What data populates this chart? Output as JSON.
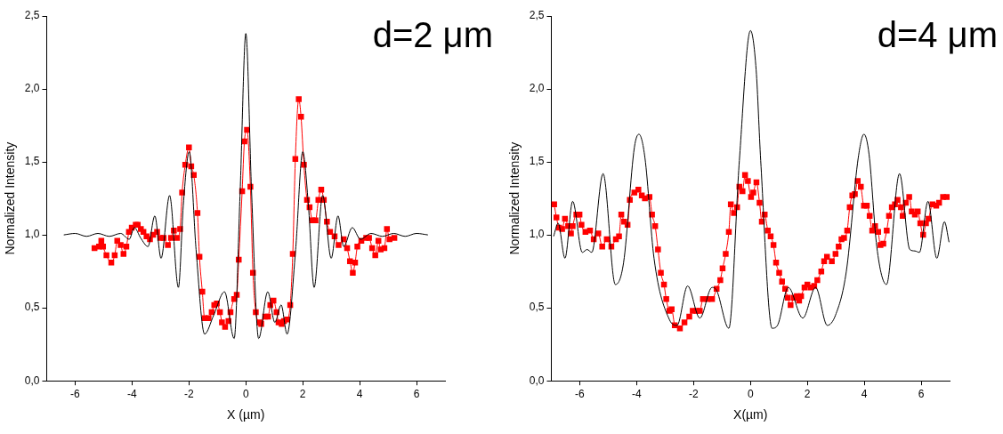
{
  "chart_data": [
    {
      "type": "line",
      "annotations": [
        "d=2 μm"
      ],
      "xlabel": "X (µm)",
      "ylabel": "Normalized Intensity",
      "xlim": [
        -7,
        7
      ],
      "xticks": [
        -6,
        -4,
        -2,
        0,
        2,
        4,
        6
      ],
      "ylim": [
        0,
        2.5
      ],
      "yticks": [
        {
          "value": 0,
          "label": "0,0"
        },
        {
          "value": 0.5,
          "label": "0,5"
        },
        {
          "value": 1,
          "label": "1,0"
        },
        {
          "value": 1.5,
          "label": "1,5"
        },
        {
          "value": 2,
          "label": "2,0"
        },
        {
          "value": 2.5,
          "label": "2,5"
        }
      ],
      "grid": false,
      "series": [
        {
          "type": "line",
          "marker": "none",
          "color": "#000000",
          "x": [
            -6.4,
            -6.0,
            -5.6,
            -5.2,
            -4.8,
            -4.4,
            -4.1,
            -3.92,
            -3.7,
            -3.44,
            -3.2,
            -2.98,
            -2.68,
            -2.37,
            -2.2,
            -1.99,
            -1.75,
            -1.45,
            -1.13,
            -0.75,
            -0.41,
            -0.2,
            0,
            0.2,
            0.45,
            0.77,
            1.02,
            1.24,
            1.45,
            1.75,
            2.0,
            2.2,
            2.4,
            2.7,
            3.0,
            3.24,
            3.44,
            3.74,
            4.03,
            4.4,
            4.8,
            5.2,
            5.6,
            6.0,
            6.4
          ],
          "values": [
            1.0,
            1.01,
            0.99,
            1.01,
            0.99,
            1.01,
            0.97,
            1.05,
            0.98,
            0.92,
            1.13,
            0.84,
            1.27,
            0.64,
            1.2,
            1.57,
            0.9,
            0.32,
            0.45,
            0.61,
            0.29,
            1.3,
            2.38,
            1.3,
            0.29,
            0.61,
            0.4,
            0.52,
            0.32,
            0.9,
            1.57,
            1.2,
            0.64,
            1.27,
            0.84,
            1.13,
            0.92,
            1.05,
            0.97,
            1.01,
            0.99,
            1.01,
            0.99,
            1.01,
            1.0
          ]
        },
        {
          "type": "line",
          "marker": "square",
          "color": "#ff0000",
          "x": [
            -5.32,
            -5.16,
            -5.08,
            -5.02,
            -4.9,
            -4.73,
            -4.61,
            -4.52,
            -4.4,
            -4.3,
            -4.2,
            -4.11,
            -4.01,
            -3.87,
            -3.8,
            -3.69,
            -3.6,
            -3.49,
            -3.37,
            -3.26,
            -3.12,
            -3.01,
            -2.89,
            -2.74,
            -2.63,
            -2.53,
            -2.42,
            -2.31,
            -2.24,
            -2.13,
            -2.0,
            -1.92,
            -1.83,
            -1.7,
            -1.63,
            -1.53,
            -1.45,
            -1.31,
            -1.2,
            -1.11,
            -1.02,
            -0.91,
            -0.84,
            -0.73,
            -0.61,
            -0.54,
            -0.41,
            -0.32,
            -0.25,
            -0.13,
            -0.05,
            0.04,
            0.16,
            0.25,
            0.35,
            0.48,
            0.54,
            0.68,
            0.78,
            0.86,
            0.97,
            1.08,
            1.15,
            1.26,
            1.34,
            1.45,
            1.56,
            1.65,
            1.74,
            1.86,
            1.94,
            2.04,
            2.15,
            2.24,
            2.34,
            2.45,
            2.55,
            2.65,
            2.74,
            2.85,
            2.96,
            3.12,
            3.26,
            3.44,
            3.56,
            3.66,
            3.76,
            3.84,
            3.92,
            4.06,
            4.23,
            4.33,
            4.44,
            4.55,
            4.66,
            4.74,
            4.87,
            4.96,
            5.05,
            5.22
          ],
          "values": [
            0.91,
            0.92,
            0.96,
            0.92,
            0.86,
            0.81,
            0.86,
            0.96,
            0.93,
            0.87,
            0.92,
            1.02,
            1.05,
            1.07,
            1.07,
            1.04,
            1.02,
            0.99,
            0.97,
            1.0,
            1.02,
            0.98,
            0.98,
            0.93,
            0.98,
            1.03,
            0.98,
            1.04,
            1.29,
            1.48,
            1.6,
            1.47,
            1.41,
            1.15,
            0.85,
            0.61,
            0.43,
            0.43,
            0.47,
            0.52,
            0.53,
            0.47,
            0.4,
            0.37,
            0.41,
            0.47,
            0.56,
            0.59,
            0.83,
            1.3,
            1.64,
            1.72,
            1.33,
            0.74,
            0.47,
            0.4,
            0.39,
            0.44,
            0.44,
            0.52,
            0.55,
            0.47,
            0.4,
            0.39,
            0.41,
            0.42,
            0.52,
            0.87,
            1.52,
            1.93,
            1.81,
            1.48,
            1.24,
            1.19,
            1.1,
            1.1,
            1.24,
            1.31,
            1.24,
            1.09,
            1.02,
            0.99,
            0.93,
            0.97,
            0.91,
            0.82,
            0.74,
            0.81,
            0.92,
            0.96,
            0.98,
            0.98,
            0.91,
            0.86,
            0.96,
            0.9,
            0.91,
            1.04,
            0.97,
            0.98
          ]
        }
      ]
    },
    {
      "type": "line",
      "annotations": [
        "d=4 μm"
      ],
      "xlabel": "X(µm)",
      "ylabel": "Normalized Intensity",
      "xlim": [
        -7,
        7
      ],
      "xticks": [
        -6,
        -4,
        -2,
        0,
        2,
        4,
        6
      ],
      "ylim": [
        0,
        2.5
      ],
      "yticks": [
        {
          "value": 0,
          "label": "0,0"
        },
        {
          "value": 0.5,
          "label": "0,5"
        },
        {
          "value": 1,
          "label": "1,0"
        },
        {
          "value": 1.5,
          "label": "1,5"
        },
        {
          "value": 2,
          "label": "2,0"
        },
        {
          "value": 2.5,
          "label": "2,5"
        }
      ],
      "grid": false,
      "series": [
        {
          "type": "line",
          "marker": "none",
          "color": "#000000",
          "x": [
            -6.92,
            -6.76,
            -6.52,
            -6.25,
            -5.91,
            -5.74,
            -5.58,
            -5.18,
            -4.75,
            -4.46,
            -4.08,
            -3.92,
            -3.71,
            -3.39,
            -2.85,
            -2.58,
            -2.21,
            -1.78,
            -1.35,
            -1.19,
            -0.76,
            -0.39,
            0,
            0.2,
            0.36,
            0.76,
            0.95,
            1.33,
            1.84,
            2.29,
            2.7,
            2.99,
            3.37,
            3.79,
            3.99,
            4.17,
            4.44,
            4.78,
            5.24,
            5.6,
            5.78,
            5.94,
            6.24,
            6.55,
            6.82,
            6.98
          ],
          "values": [
            0.99,
            1.08,
            0.84,
            1.23,
            0.88,
            0.9,
            0.88,
            1.42,
            0.66,
            0.81,
            1.6,
            1.69,
            1.53,
            0.84,
            0.42,
            0.38,
            0.65,
            0.43,
            0.64,
            0.62,
            0.36,
            1.51,
            2.4,
            2.13,
            1.51,
            0.36,
            0.38,
            0.64,
            0.43,
            0.64,
            0.38,
            0.45,
            0.75,
            1.53,
            1.69,
            1.55,
            0.92,
            0.66,
            1.42,
            0.9,
            0.89,
            0.88,
            1.23,
            0.84,
            1.09,
            0.95
          ]
        },
        {
          "type": "line",
          "marker": "square",
          "color": "#ff0000",
          "x": [
            -6.9,
            -6.82,
            -6.73,
            -6.62,
            -6.52,
            -6.41,
            -6.31,
            -6.25,
            -6.12,
            -6.01,
            -5.94,
            -5.8,
            -5.64,
            -5.51,
            -5.35,
            -5.21,
            -5.05,
            -4.89,
            -4.73,
            -4.62,
            -4.54,
            -4.44,
            -4.32,
            -4.24,
            -4.08,
            -3.94,
            -3.82,
            -3.71,
            -3.55,
            -3.46,
            -3.35,
            -3.25,
            -3.15,
            -3.04,
            -2.96,
            -2.85,
            -2.77,
            -2.66,
            -2.48,
            -2.32,
            -2.15,
            -2.03,
            -1.89,
            -1.78,
            -1.67,
            -1.51,
            -1.35,
            -1.19,
            -1.06,
            -0.98,
            -0.87,
            -0.76,
            -0.69,
            -0.58,
            -0.47,
            -0.39,
            -0.28,
            -0.19,
            -0.09,
            0.02,
            0.1,
            0.21,
            0.32,
            0.4,
            0.5,
            0.61,
            0.71,
            0.81,
            0.9,
            1.01,
            1.11,
            1.22,
            1.31,
            1.41,
            1.52,
            1.63,
            1.71,
            1.78,
            1.9,
            2.0,
            2.11,
            2.24,
            2.35,
            2.49,
            2.59,
            2.69,
            2.86,
            2.99,
            3.1,
            3.2,
            3.29,
            3.4,
            3.49,
            3.58,
            3.67,
            3.77,
            3.88,
            3.99,
            4.09,
            4.19,
            4.28,
            4.38,
            4.49,
            4.57,
            4.67,
            4.79,
            4.87,
            4.97,
            5.08,
            5.17,
            5.29,
            5.35,
            5.46,
            5.58,
            5.67,
            5.78,
            5.88,
            5.97,
            6.07,
            6.17,
            6.26,
            6.4,
            6.53,
            6.63,
            6.77,
            6.9
          ],
          "values": [
            1.21,
            1.12,
            1.05,
            1.04,
            1.11,
            1.06,
            1.01,
            1.06,
            1.14,
            1.14,
            1.07,
            1.02,
            1.03,
            0.97,
            1.01,
            0.92,
            0.97,
            0.92,
            0.97,
            0.99,
            1.14,
            1.09,
            1.07,
            1.24,
            1.29,
            1.31,
            1.27,
            1.25,
            1.26,
            1.14,
            1.06,
            0.9,
            0.74,
            0.66,
            0.56,
            0.48,
            0.49,
            0.38,
            0.36,
            0.4,
            0.44,
            0.48,
            0.48,
            0.48,
            0.56,
            0.56,
            0.56,
            0.63,
            0.69,
            0.77,
            0.87,
            1.02,
            1.21,
            1.15,
            1.19,
            1.33,
            1.3,
            1.41,
            1.37,
            1.26,
            1.29,
            1.36,
            1.22,
            1.09,
            1.14,
            1.03,
            0.99,
            0.93,
            0.81,
            0.74,
            0.68,
            0.63,
            0.57,
            0.52,
            0.57,
            0.58,
            0.55,
            0.58,
            0.64,
            0.66,
            0.64,
            0.65,
            0.69,
            0.75,
            0.82,
            0.85,
            0.82,
            0.87,
            0.92,
            0.97,
            0.98,
            1.03,
            1.19,
            1.27,
            1.28,
            1.37,
            1.33,
            1.2,
            1.2,
            1.13,
            1.03,
            1.06,
            1.02,
            0.93,
            0.94,
            1.03,
            1.13,
            1.19,
            1.21,
            1.24,
            1.19,
            1.13,
            1.22,
            1.26,
            1.16,
            1.14,
            1.16,
            1.08,
            1.0,
            1.08,
            1.11,
            1.21,
            1.2,
            1.22,
            1.26,
            1.26
          ]
        }
      ]
    }
  ]
}
